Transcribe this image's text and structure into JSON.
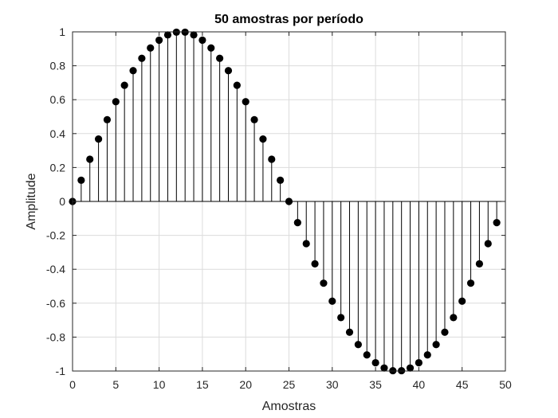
{
  "chart_data": {
    "type": "stem",
    "title": "50 amostras por período",
    "xlabel": "Amostras",
    "ylabel": "Amplitude",
    "xlim": [
      0,
      50
    ],
    "ylim": [
      -1,
      1
    ],
    "xticks": [
      0,
      5,
      10,
      15,
      20,
      25,
      30,
      35,
      40,
      45,
      50
    ],
    "xtick_labels": [
      "0",
      "5",
      "10",
      "15",
      "20",
      "25",
      "30",
      "35",
      "40",
      "45",
      "50"
    ],
    "yticks": [
      1,
      0.8,
      0.6,
      0.4,
      0.2,
      0,
      -0.2,
      -0.4,
      -0.6,
      -0.8,
      -1
    ],
    "ytick_labels": [
      "1",
      "0.8",
      "0.6",
      "0.4",
      "0.2",
      "0",
      "-0.2",
      "-0.4",
      "-0.6",
      "-0.8",
      "-1"
    ],
    "grid": true,
    "marker_color": "#000000",
    "x": [
      0,
      1,
      2,
      3,
      4,
      5,
      6,
      7,
      8,
      9,
      10,
      11,
      12,
      13,
      14,
      15,
      16,
      17,
      18,
      19,
      20,
      21,
      22,
      23,
      24,
      25,
      26,
      27,
      28,
      29,
      30,
      31,
      32,
      33,
      34,
      35,
      36,
      37,
      38,
      39,
      40,
      41,
      42,
      43,
      44,
      45,
      46,
      47,
      48,
      49
    ],
    "values": [
      0,
      0.125,
      0.249,
      0.368,
      0.482,
      0.588,
      0.685,
      0.771,
      0.844,
      0.905,
      0.951,
      0.982,
      0.998,
      0.998,
      0.982,
      0.951,
      0.905,
      0.844,
      0.771,
      0.685,
      0.588,
      0.482,
      0.368,
      0.249,
      0.125,
      0,
      -0.125,
      -0.249,
      -0.368,
      -0.482,
      -0.588,
      -0.685,
      -0.771,
      -0.844,
      -0.905,
      -0.951,
      -0.982,
      -0.998,
      -0.998,
      -0.982,
      -0.951,
      -0.905,
      -0.844,
      -0.771,
      -0.685,
      -0.588,
      -0.482,
      -0.368,
      -0.249,
      -0.125
    ]
  }
}
